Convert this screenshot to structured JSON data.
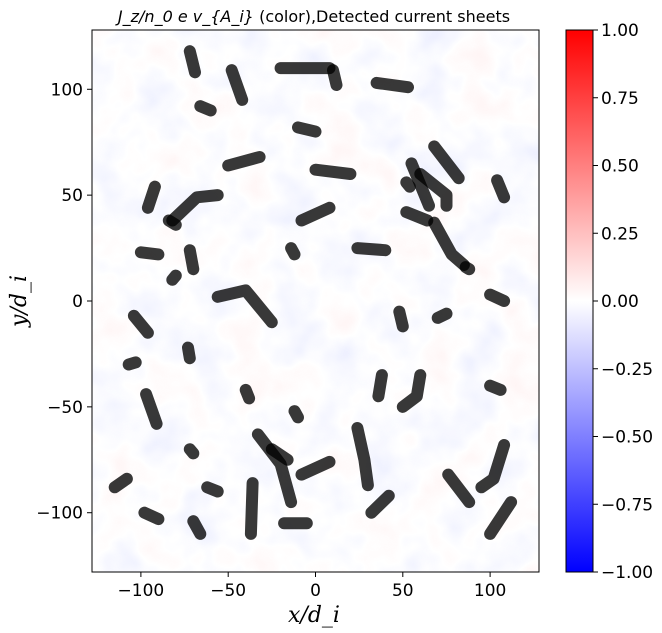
{
  "chart_data": {
    "type": "heatmap",
    "title": {
      "math": "J_z/n_0 e v_{A_i}",
      "rest": " (color),Detected current sheets"
    },
    "xlabel": "x/d_i",
    "ylabel": "y/d_i",
    "xlim": [
      -128,
      128
    ],
    "ylim": [
      -128,
      128
    ],
    "x_ticks": [
      -100,
      -50,
      0,
      50,
      100
    ],
    "y_ticks": [
      -100,
      -50,
      0,
      50,
      100
    ],
    "x_tick_labels": [
      "−100",
      "−50",
      "0",
      "50",
      "100"
    ],
    "y_tick_labels": [
      "−100",
      "−50",
      "0",
      "50",
      "100"
    ],
    "colorbar": {
      "colormap": "bwr",
      "min": -1.0,
      "max": 1.0,
      "ticks": [
        1.0,
        0.75,
        0.5,
        0.25,
        0.0,
        -0.25,
        -0.5,
        -0.75,
        -1.0
      ],
      "tick_labels": [
        "1.00",
        "0.75",
        "0.50",
        "0.25",
        "0.00",
        "−0.25",
        "−0.50",
        "−0.75",
        "−1.00"
      ],
      "colors": {
        "min": "#0000ff",
        "mid": "#ffffff",
        "max": "#ff0000"
      }
    },
    "current_sheets": [
      [
        [
          -72,
          118
        ],
        [
          -69,
          108
        ]
      ],
      [
        [
          -48,
          109
        ],
        [
          -42,
          95
        ]
      ],
      [
        [
          -66,
          92
        ],
        [
          -60,
          90
        ]
      ],
      [
        [
          -20,
          110
        ],
        [
          8,
          110
        ]
      ],
      [
        [
          10,
          109
        ],
        [
          12,
          102
        ]
      ],
      [
        [
          35,
          103
        ],
        [
          53,
          101
        ]
      ],
      [
        [
          -50,
          64
        ],
        [
          -32,
          68
        ]
      ],
      [
        [
          -10,
          82
        ],
        [
          0,
          80
        ]
      ],
      [
        [
          -92,
          54
        ],
        [
          -96,
          44
        ]
      ],
      [
        [
          -82,
          38
        ],
        [
          -68,
          49
        ],
        [
          -56,
          50
        ]
      ],
      [
        [
          -80,
          36
        ],
        [
          -84,
          38
        ]
      ],
      [
        [
          -100,
          23
        ],
        [
          -90,
          22
        ]
      ],
      [
        [
          -70,
          15
        ],
        [
          -72,
          24
        ]
      ],
      [
        [
          -82,
          10
        ],
        [
          -80,
          12
        ]
      ],
      [
        [
          -8,
          38
        ],
        [
          8,
          44
        ]
      ],
      [
        [
          0,
          62
        ],
        [
          20,
          60
        ]
      ],
      [
        [
          -14,
          25
        ],
        [
          -12,
          22
        ]
      ],
      [
        [
          24,
          25
        ],
        [
          40,
          24
        ]
      ],
      [
        [
          52,
          42
        ],
        [
          64,
          38
        ]
      ],
      [
        [
          65,
          45
        ],
        [
          60,
          55
        ],
        [
          55,
          65
        ]
      ],
      [
        [
          68,
          73
        ],
        [
          82,
          58
        ]
      ],
      [
        [
          60,
          60
        ],
        [
          75,
          50
        ],
        [
          75,
          45
        ]
      ],
      [
        [
          68,
          37
        ],
        [
          78,
          22
        ],
        [
          85,
          17
        ]
      ],
      [
        [
          88,
          15
        ],
        [
          86,
          16
        ]
      ],
      [
        [
          52,
          56
        ],
        [
          54,
          54
        ]
      ],
      [
        [
          104,
          57
        ],
        [
          108,
          49
        ]
      ],
      [
        [
          -56,
          2
        ],
        [
          -40,
          5
        ],
        [
          -30,
          -5
        ],
        [
          -25,
          -10
        ]
      ],
      [
        [
          -104,
          -7
        ],
        [
          -96,
          -15
        ]
      ],
      [
        [
          -72,
          -27
        ],
        [
          -73,
          -22
        ]
      ],
      [
        [
          -107,
          -30
        ],
        [
          -103,
          -29
        ]
      ],
      [
        [
          -97,
          -44
        ],
        [
          -91,
          -58
        ]
      ],
      [
        [
          48,
          -5
        ],
        [
          50,
          -12
        ]
      ],
      [
        [
          70,
          -8
        ],
        [
          75,
          -6
        ]
      ],
      [
        [
          100,
          3
        ],
        [
          108,
          0
        ]
      ],
      [
        [
          -12,
          -52
        ],
        [
          -10,
          -55
        ]
      ],
      [
        [
          38,
          -35
        ],
        [
          36,
          -45
        ]
      ],
      [
        [
          60,
          -35
        ],
        [
          58,
          -45
        ],
        [
          50,
          -50
        ]
      ],
      [
        [
          106,
          -42
        ],
        [
          100,
          -40
        ]
      ],
      [
        [
          -40,
          -42
        ],
        [
          -38,
          -46
        ]
      ],
      [
        [
          -33,
          -63
        ],
        [
          -20,
          -77
        ],
        [
          -14,
          -95
        ]
      ],
      [
        [
          -25,
          -70
        ],
        [
          -16,
          -75
        ]
      ],
      [
        [
          -8,
          -82
        ],
        [
          8,
          -76
        ]
      ],
      [
        [
          24,
          -60
        ],
        [
          28,
          -75
        ],
        [
          30,
          -87
        ]
      ],
      [
        [
          32,
          -100
        ],
        [
          42,
          -92
        ]
      ],
      [
        [
          -115,
          -88
        ],
        [
          -108,
          -84
        ]
      ],
      [
        [
          -98,
          -100
        ],
        [
          -90,
          -103
        ]
      ],
      [
        [
          -62,
          -88
        ],
        [
          -56,
          -90
        ]
      ],
      [
        [
          -70,
          -104
        ],
        [
          -66,
          -110
        ]
      ],
      [
        [
          -36,
          -86
        ],
        [
          -37,
          -110
        ]
      ],
      [
        [
          -18,
          -105
        ],
        [
          -5,
          -105
        ]
      ],
      [
        [
          76,
          -82
        ],
        [
          88,
          -95
        ]
      ],
      [
        [
          108,
          -68
        ],
        [
          102,
          -84
        ],
        [
          95,
          -88
        ]
      ],
      [
        [
          112,
          -95
        ],
        [
          100,
          -110
        ]
      ],
      [
        [
          -72,
          -70
        ],
        [
          -70,
          -72
        ]
      ]
    ]
  }
}
